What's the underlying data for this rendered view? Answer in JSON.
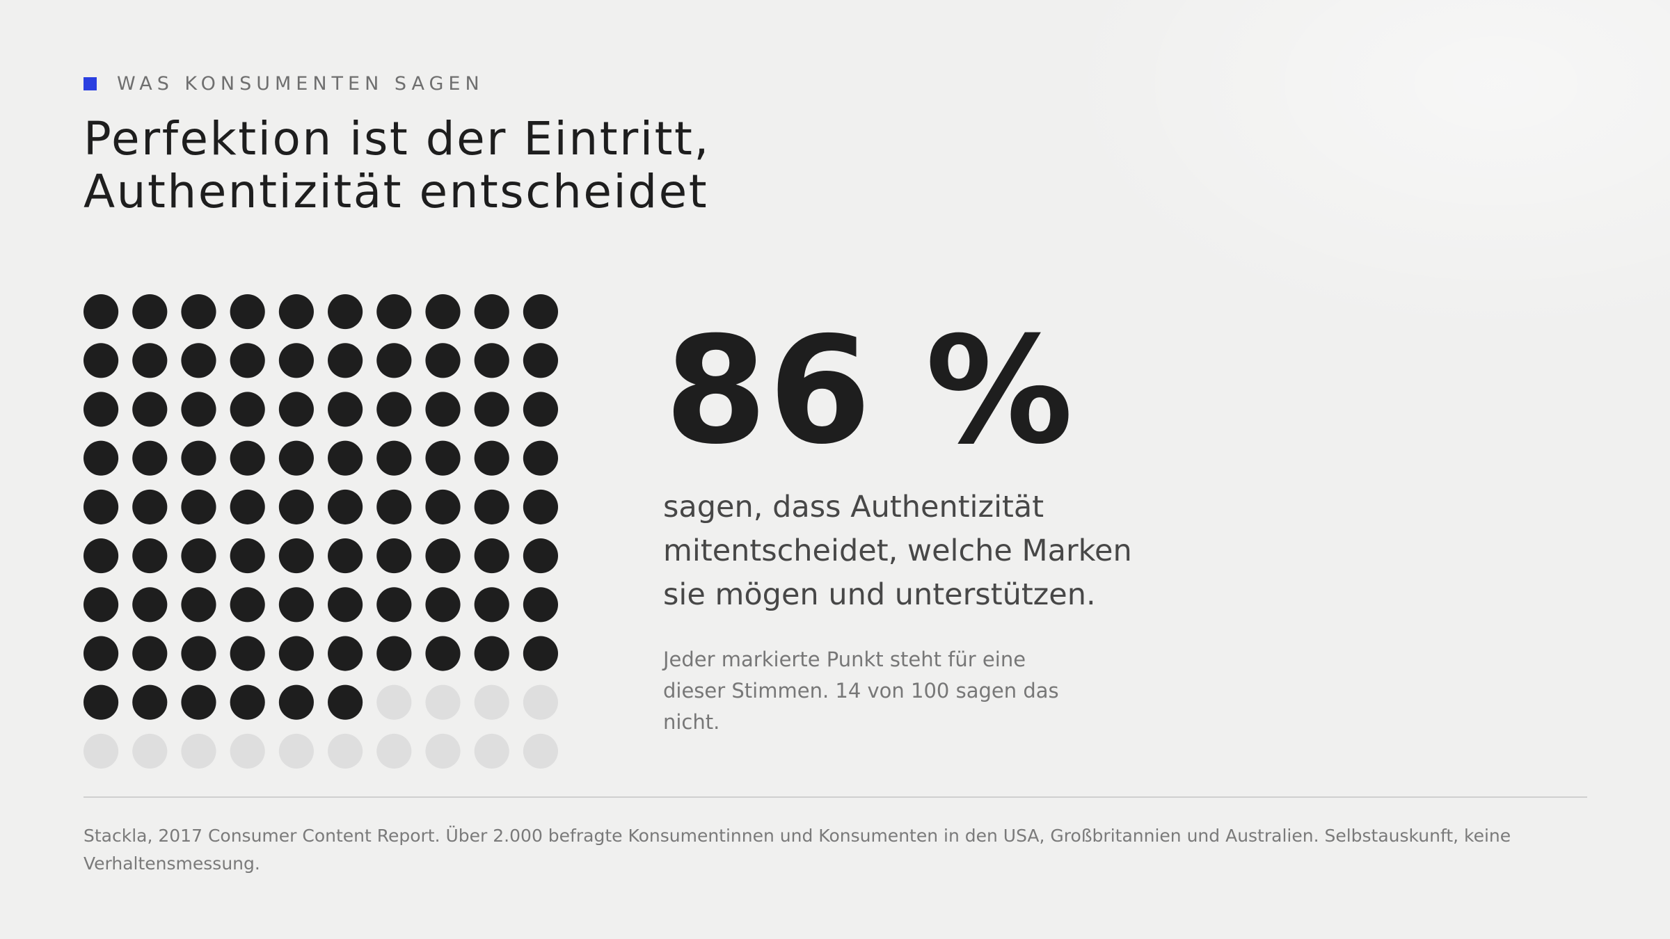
{
  "eyebrow": {
    "label": "WAS KONSUMENTEN SAGEN",
    "accent_color": "#2a3fe0"
  },
  "headline": {
    "line1": "Perfektion ist der Eintritt,",
    "line2": "Authentizität entscheidet"
  },
  "dot_grid": {
    "total": 100,
    "marked": 86,
    "columns": 10,
    "marked_color": "#1e1e1e",
    "unmarked_color": "#dedede"
  },
  "stat": {
    "value": "86 %",
    "description": "sagen, dass Authentizität mitentscheidet, welche Marken sie mögen und unterstützen.",
    "note": "Jeder markierte Punkt steht für eine dieser Stimmen. 14 von 100 sagen das nicht."
  },
  "source": {
    "text": "Stackla, 2017 Consumer Content Report. Über 2.000 befragte Konsumentinnen und Konsumenten in den USA, Großbritannien und Australien. Selbstauskunft, keine Verhaltensmessung."
  }
}
